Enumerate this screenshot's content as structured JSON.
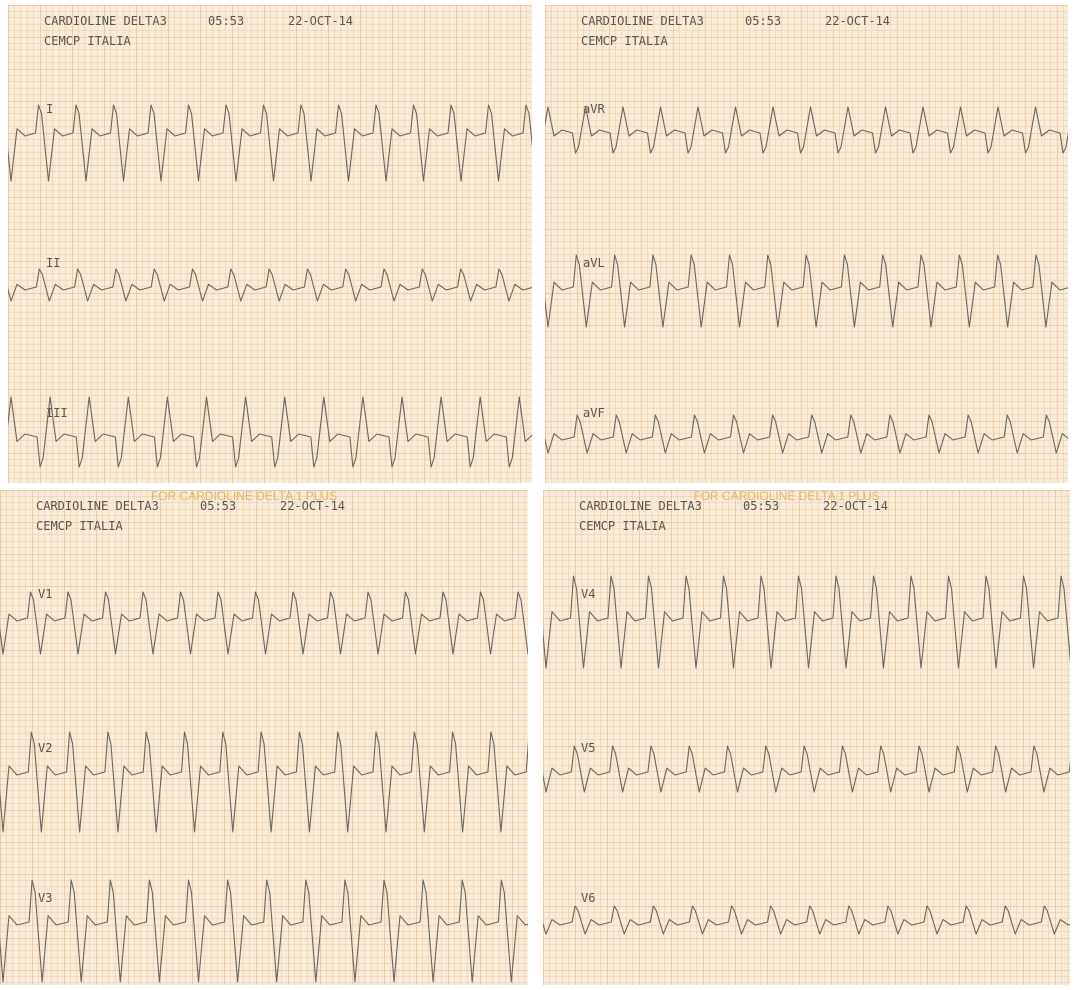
{
  "panels": [
    {
      "device": "CARDIOLINE DELTA3",
      "time": "05:53",
      "date": "22-OCT-14",
      "site": "CEMCP ITALIA",
      "leads": [
        "I",
        "II",
        "III"
      ]
    },
    {
      "device": "CARDIOLINE DELTA3",
      "time": "05:53",
      "date": "22-OCT-14",
      "site": "CEMCP ITALIA",
      "leads": [
        "aVR",
        "aVL",
        "aVF"
      ]
    },
    {
      "device": "CARDIOLINE DELTA3",
      "time": "05:53",
      "date": "22-OCT-14",
      "site": "CEMCP ITALIA",
      "leads": [
        "V1",
        "V2",
        "V3"
      ],
      "watermark": "FOR CARDIOLINE DELTA 1 PLUS"
    },
    {
      "device": "CARDIOLINE DELTA3",
      "time": "05:53",
      "date": "22-OCT-14",
      "site": "CEMCP ITALIA",
      "leads": [
        "V4",
        "V5",
        "V6"
      ],
      "watermark": "FOR CARDIOLINE DELTA 1 PLUS"
    }
  ]
}
